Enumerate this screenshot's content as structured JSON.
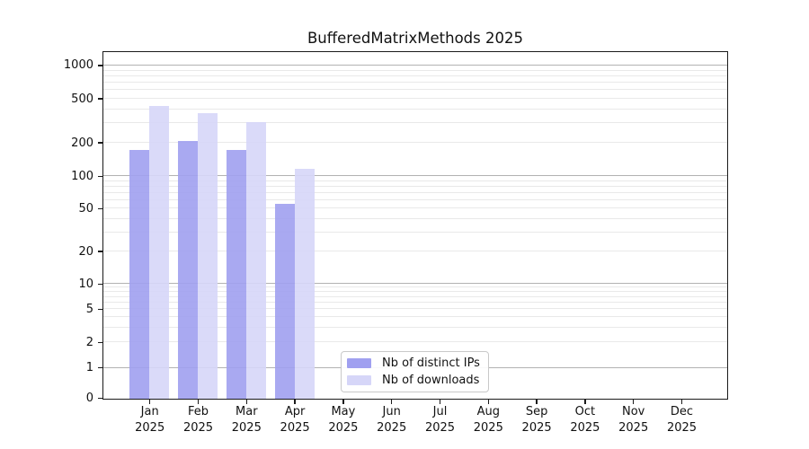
{
  "figure": {
    "background": "#ffffff"
  },
  "chart_data": {
    "type": "bar",
    "title": "BufferedMatrixMethods 2025",
    "months": [
      "Jan",
      "Feb",
      "Mar",
      "Apr",
      "May",
      "Jun",
      "Jul",
      "Aug",
      "Sep",
      "Oct",
      "Nov",
      "Dec"
    ],
    "year": "2025",
    "series": [
      {
        "name": "Nb of distinct IPs",
        "color": "#a0a0f0",
        "values": [
          175,
          210,
          175,
          56,
          0,
          0,
          0,
          0,
          0,
          0,
          0,
          0
        ]
      },
      {
        "name": "Nb of downloads",
        "color": "#d6d6f8",
        "values": [
          432,
          372,
          312,
          118,
          0,
          0,
          0,
          0,
          0,
          0,
          0,
          0
        ]
      }
    ],
    "yticks": [
      0,
      1,
      2,
      5,
      10,
      20,
      50,
      100,
      200,
      500,
      1000
    ],
    "yscale": "symlog",
    "ylim": [
      0,
      1300
    ],
    "grid": true,
    "legend_position": "lower center inside",
    "xlabel": "",
    "ylabel": ""
  }
}
